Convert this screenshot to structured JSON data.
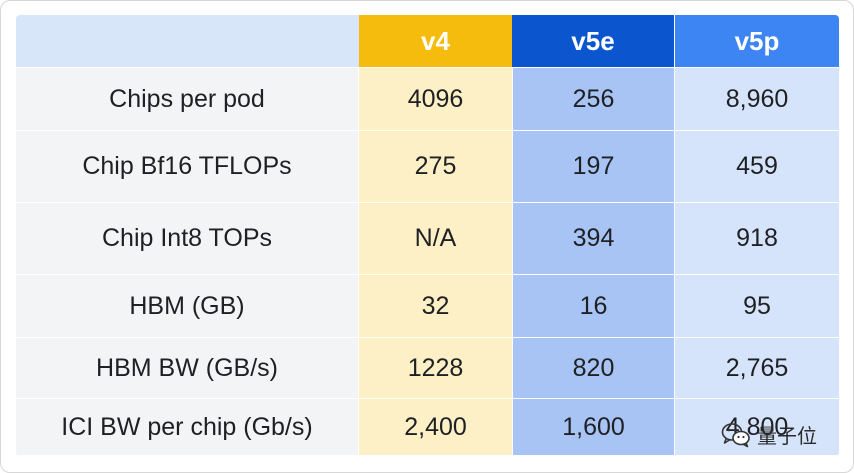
{
  "table": {
    "headers": [
      "",
      "v4",
      "v5e",
      "v5p"
    ],
    "rows": [
      {
        "label": "Chips per pod",
        "v4": "4096",
        "v5e": "256",
        "v5p": "8,960"
      },
      {
        "label": "Chip Bf16 TFLOPs",
        "v4": "275",
        "v5e": "197",
        "v5p": "459"
      },
      {
        "label": "Chip Int8 TOPs",
        "v4": "N/A",
        "v5e": "394",
        "v5p": "918"
      },
      {
        "label": "HBM (GB)",
        "v4": "32",
        "v5e": "16",
        "v5p": "95"
      },
      {
        "label": "HBM BW (GB/s)",
        "v4": "1228",
        "v5e": "820",
        "v5p": "2,765"
      },
      {
        "label": "ICI BW per chip (Gb/s)",
        "v4": "2,400",
        "v5e": "1,600",
        "v5p": "4,800"
      }
    ]
  },
  "colors": {
    "v4_header": "#f5bc0e",
    "v5e_header": "#0b56cf",
    "v5p_header": "#3d85f2",
    "v4_cells": "#fdf0c6",
    "v5e_cells": "#a7c4f5",
    "v5p_cells": "#d6e4fb"
  },
  "watermark": {
    "text": "量子位",
    "icon": "wechat-icon"
  }
}
